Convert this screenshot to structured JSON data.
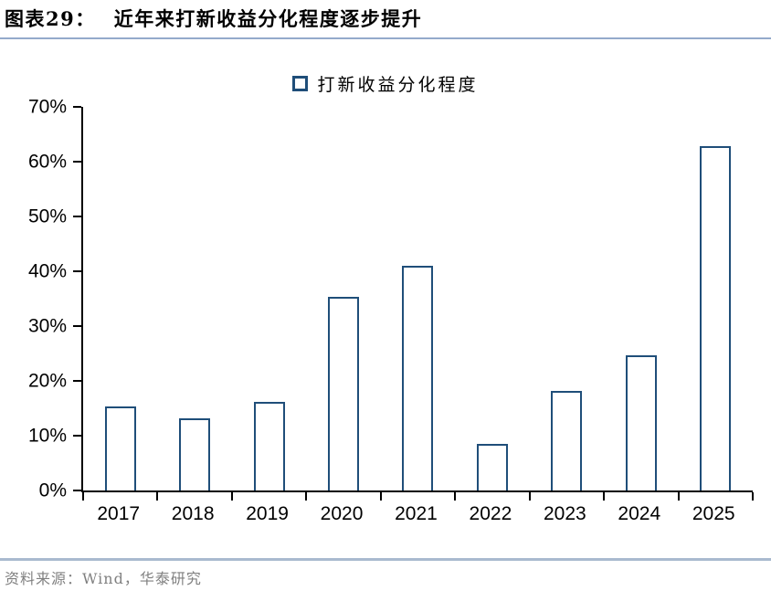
{
  "figure": {
    "label": "图表29：",
    "title": "近年来打新收益分化程度逐步提升"
  },
  "legend": {
    "items": [
      {
        "label": "打新收益分化程度",
        "marker_border": "#1F4E79",
        "marker_fill": "#FFFFFF"
      }
    ]
  },
  "axes": {
    "y_tick_labels": [
      "0%",
      "10%",
      "20%",
      "30%",
      "40%",
      "50%",
      "60%",
      "70%"
    ],
    "x_tick_labels": [
      "2017",
      "2018",
      "2019",
      "2020",
      "2021",
      "2022",
      "2023",
      "2024",
      "2025"
    ]
  },
  "chart_data": {
    "type": "bar",
    "title": "近年来打新收益分化程度逐步提升",
    "categories": [
      "2017",
      "2018",
      "2019",
      "2020",
      "2021",
      "2022",
      "2023",
      "2024",
      "2025"
    ],
    "values": [
      15.0,
      12.8,
      15.8,
      35.0,
      40.6,
      8.2,
      17.9,
      24.3,
      62.5
    ],
    "unit": "%",
    "xlabel": "",
    "ylabel": "",
    "ylim": [
      0,
      70
    ],
    "ytick_step": 10,
    "legend": [
      "打新收益分化程度"
    ],
    "legend_position": "top-center",
    "grid": false,
    "bar_fill": "#FFFFFF",
    "bar_border": "#1F4E79"
  },
  "source": {
    "text": "资料来源：Wind，华泰研究"
  },
  "colors": {
    "bar_border_navy": "#1F4E79",
    "title_rule_blue": "#94AACB",
    "bottom_rule_blue": "#A9BACF",
    "axis_black": "#000000",
    "source_gray": "#808080",
    "background": "#FFFFFF"
  }
}
